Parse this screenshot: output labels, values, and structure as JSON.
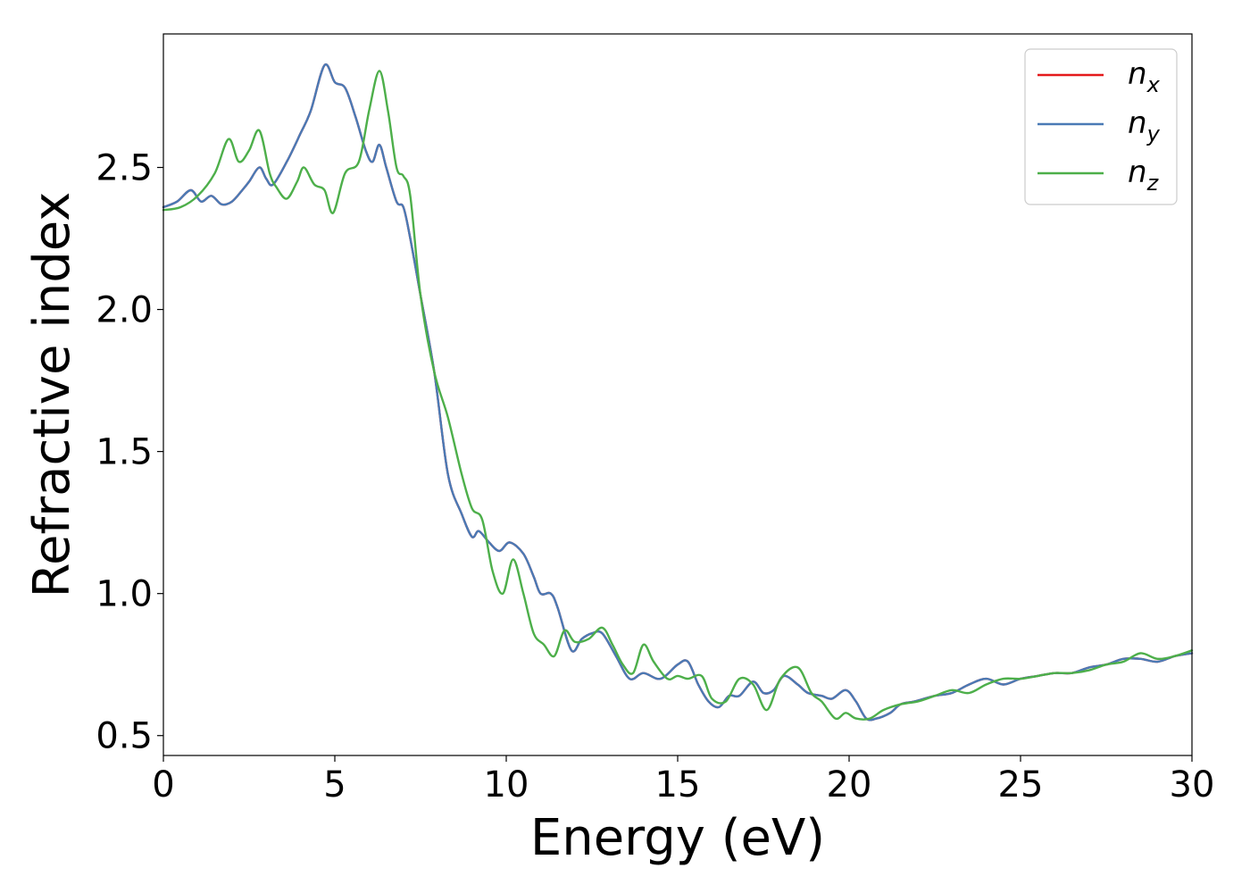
{
  "chart_data": {
    "type": "line",
    "xlabel": "Energy (eV)",
    "ylabel": "Refractive index",
    "xlim": [
      0,
      30
    ],
    "ylim": [
      0.43,
      2.97
    ],
    "xticks": [
      0,
      5,
      10,
      15,
      20,
      25,
      30
    ],
    "yticks": [
      0.5,
      1.0,
      1.5,
      2.0,
      2.5
    ],
    "xtick_labels": [
      "0",
      "5",
      "10",
      "15",
      "20",
      "25",
      "30"
    ],
    "ytick_labels": [
      "0.5",
      "1.0",
      "1.5",
      "2.0",
      "2.5"
    ],
    "grid": false,
    "legend_position": "top-right",
    "series": [
      {
        "name": "n",
        "subscript": "x",
        "color": "#e41a1c",
        "x": [
          0,
          0.4,
          0.8,
          1.1,
          1.4,
          1.7,
          2.0,
          2.3,
          2.5,
          2.8,
          3.0,
          3.2,
          3.6,
          4.0,
          4.3,
          4.7,
          5.0,
          5.3,
          5.6,
          5.9,
          6.1,
          6.3,
          6.5,
          6.8,
          7.0,
          7.2,
          7.5,
          7.9,
          8.3,
          8.7,
          9.0,
          9.2,
          9.5,
          9.8,
          10.1,
          10.5,
          10.8,
          11.0,
          11.3,
          11.5,
          11.9,
          12.2,
          12.5,
          12.8,
          13.2,
          13.6,
          14.0,
          14.5,
          15.0,
          15.3,
          15.6,
          15.9,
          16.2,
          16.5,
          16.8,
          17.2,
          17.5,
          17.8,
          18.1,
          18.5,
          18.8,
          19.2,
          19.5,
          19.9,
          20.2,
          20.5,
          20.8,
          21.2,
          21.5,
          21.9,
          22.5,
          23.0,
          23.5,
          24.0,
          24.5,
          25.0,
          25.5,
          26.0,
          26.5,
          27.0,
          27.5,
          28.0,
          28.5,
          29.0,
          29.5,
          30.0
        ],
        "y": [
          2.36,
          2.38,
          2.42,
          2.38,
          2.4,
          2.37,
          2.38,
          2.42,
          2.45,
          2.5,
          2.46,
          2.44,
          2.52,
          2.62,
          2.7,
          2.86,
          2.8,
          2.78,
          2.68,
          2.56,
          2.52,
          2.58,
          2.5,
          2.38,
          2.36,
          2.25,
          2.05,
          1.78,
          1.42,
          1.28,
          1.2,
          1.22,
          1.18,
          1.15,
          1.18,
          1.14,
          1.06,
          1.0,
          1.0,
          0.95,
          0.8,
          0.84,
          0.86,
          0.86,
          0.78,
          0.7,
          0.72,
          0.7,
          0.75,
          0.76,
          0.68,
          0.62,
          0.6,
          0.64,
          0.64,
          0.69,
          0.65,
          0.66,
          0.71,
          0.68,
          0.65,
          0.64,
          0.63,
          0.66,
          0.62,
          0.56,
          0.56,
          0.58,
          0.61,
          0.62,
          0.64,
          0.65,
          0.68,
          0.7,
          0.68,
          0.7,
          0.71,
          0.72,
          0.72,
          0.74,
          0.75,
          0.77,
          0.77,
          0.76,
          0.78,
          0.79
        ]
      },
      {
        "name": "n",
        "subscript": "y",
        "color": "#4a7ab5",
        "x": [
          0,
          0.4,
          0.8,
          1.1,
          1.4,
          1.7,
          2.0,
          2.3,
          2.5,
          2.8,
          3.0,
          3.2,
          3.6,
          4.0,
          4.3,
          4.7,
          5.0,
          5.3,
          5.6,
          5.9,
          6.1,
          6.3,
          6.5,
          6.8,
          7.0,
          7.2,
          7.5,
          7.9,
          8.3,
          8.7,
          9.0,
          9.2,
          9.5,
          9.8,
          10.1,
          10.5,
          10.8,
          11.0,
          11.3,
          11.5,
          11.9,
          12.2,
          12.5,
          12.8,
          13.2,
          13.6,
          14.0,
          14.5,
          15.0,
          15.3,
          15.6,
          15.9,
          16.2,
          16.5,
          16.8,
          17.2,
          17.5,
          17.8,
          18.1,
          18.5,
          18.8,
          19.2,
          19.5,
          19.9,
          20.2,
          20.5,
          20.8,
          21.2,
          21.5,
          21.9,
          22.5,
          23.0,
          23.5,
          24.0,
          24.5,
          25.0,
          25.5,
          26.0,
          26.5,
          27.0,
          27.5,
          28.0,
          28.5,
          29.0,
          29.5,
          30.0
        ],
        "y": [
          2.36,
          2.38,
          2.42,
          2.38,
          2.4,
          2.37,
          2.38,
          2.42,
          2.45,
          2.5,
          2.46,
          2.44,
          2.52,
          2.62,
          2.7,
          2.86,
          2.8,
          2.78,
          2.68,
          2.56,
          2.52,
          2.58,
          2.5,
          2.38,
          2.36,
          2.25,
          2.05,
          1.78,
          1.42,
          1.28,
          1.2,
          1.22,
          1.18,
          1.15,
          1.18,
          1.14,
          1.06,
          1.0,
          1.0,
          0.95,
          0.8,
          0.84,
          0.86,
          0.86,
          0.78,
          0.7,
          0.72,
          0.7,
          0.75,
          0.76,
          0.68,
          0.62,
          0.6,
          0.64,
          0.64,
          0.69,
          0.65,
          0.66,
          0.71,
          0.68,
          0.65,
          0.64,
          0.63,
          0.66,
          0.62,
          0.56,
          0.56,
          0.58,
          0.61,
          0.62,
          0.64,
          0.65,
          0.68,
          0.7,
          0.68,
          0.7,
          0.71,
          0.72,
          0.72,
          0.74,
          0.75,
          0.77,
          0.77,
          0.76,
          0.78,
          0.79
        ]
      },
      {
        "name": "n",
        "subscript": "z",
        "color": "#4daf4a",
        "x": [
          0,
          0.5,
          1.0,
          1.5,
          1.9,
          2.2,
          2.5,
          2.8,
          3.1,
          3.3,
          3.6,
          3.9,
          4.1,
          4.4,
          4.7,
          4.95,
          5.3,
          5.7,
          6.0,
          6.3,
          6.55,
          6.8,
          7.0,
          7.2,
          7.5,
          7.9,
          8.3,
          8.7,
          9.0,
          9.3,
          9.6,
          9.9,
          10.2,
          10.5,
          10.8,
          11.1,
          11.4,
          11.7,
          12.0,
          12.4,
          12.8,
          13.1,
          13.4,
          13.7,
          14.0,
          14.3,
          14.7,
          15.0,
          15.3,
          15.7,
          16.0,
          16.4,
          16.8,
          17.2,
          17.6,
          18.0,
          18.5,
          18.9,
          19.2,
          19.6,
          19.9,
          20.2,
          20.6,
          21.0,
          21.5,
          22.0,
          22.5,
          23.0,
          23.5,
          24.0,
          24.5,
          25.0,
          25.5,
          26.0,
          26.5,
          27.0,
          27.5,
          28.0,
          28.5,
          29.0,
          29.5,
          30.0
        ],
        "y": [
          2.35,
          2.36,
          2.4,
          2.48,
          2.6,
          2.52,
          2.56,
          2.63,
          2.48,
          2.43,
          2.39,
          2.45,
          2.5,
          2.44,
          2.42,
          2.34,
          2.48,
          2.52,
          2.7,
          2.84,
          2.7,
          2.5,
          2.47,
          2.4,
          2.05,
          1.78,
          1.62,
          1.42,
          1.3,
          1.26,
          1.08,
          1.0,
          1.12,
          1.0,
          0.86,
          0.82,
          0.78,
          0.87,
          0.83,
          0.84,
          0.88,
          0.82,
          0.75,
          0.72,
          0.82,
          0.76,
          0.7,
          0.71,
          0.7,
          0.71,
          0.63,
          0.62,
          0.7,
          0.68,
          0.59,
          0.7,
          0.74,
          0.65,
          0.62,
          0.56,
          0.58,
          0.56,
          0.56,
          0.59,
          0.61,
          0.62,
          0.64,
          0.66,
          0.65,
          0.68,
          0.7,
          0.7,
          0.71,
          0.72,
          0.72,
          0.73,
          0.75,
          0.76,
          0.79,
          0.77,
          0.78,
          0.8
        ]
      }
    ]
  }
}
